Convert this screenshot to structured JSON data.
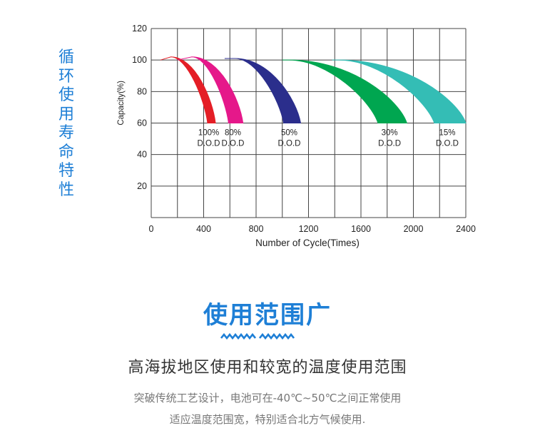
{
  "side_title": "循环使用寿命特性",
  "chart_data": {
    "type": "area",
    "xlabel": "Number of Cycle(Times)",
    "ylabel": "Capacity(%)",
    "xlim": [
      0,
      2400
    ],
    "ylim": [
      0,
      120
    ],
    "x_ticks": [
      "0",
      "400",
      "800",
      "1200",
      "1600",
      "2000",
      "2400"
    ],
    "y_ticks": [
      "20",
      "40",
      "60",
      "80",
      "100",
      "120"
    ],
    "grid": true,
    "series": [
      {
        "name": "100% D.O.D",
        "label_top": "100%",
        "label_bottom": "D.O.D",
        "color": "#e41e26",
        "start": [
          70,
          100
        ],
        "peak": [
          150,
          102
        ],
        "end_inner": [
          430,
          60
        ],
        "end_outer": [
          490,
          60
        ]
      },
      {
        "name": "80% D.O.D",
        "label_top": "80%",
        "label_bottom": "D.O.D",
        "color": "#e5188a",
        "start": [
          200,
          100
        ],
        "peak": [
          310,
          102
        ],
        "end_inner": [
          590,
          60
        ],
        "end_outer": [
          700,
          60
        ]
      },
      {
        "name": "50% D.O.D",
        "label_top": "50%",
        "label_bottom": "D.O.D",
        "color": "#2b2e8c",
        "start": [
          560,
          101
        ],
        "peak": [
          640,
          101
        ],
        "end_inner": [
          1010,
          60
        ],
        "end_outer": [
          1140,
          60
        ]
      },
      {
        "name": "30% D.O.D",
        "label_top": "30%",
        "label_bottom": "D.O.D",
        "color": "#00a650",
        "start": [
          1000,
          100
        ],
        "peak": [
          1050,
          100
        ],
        "end_inner": [
          1730,
          60
        ],
        "end_outer": [
          1950,
          60
        ]
      },
      {
        "name": "15% D.O.D",
        "label_top": "15%",
        "label_bottom": "D.O.D",
        "color": "#34bdb5",
        "start": [
          1380,
          100
        ],
        "peak": [
          1430,
          100
        ],
        "end_inner": [
          2160,
          60
        ],
        "end_outer": [
          2400,
          60
        ]
      }
    ]
  },
  "heading": "使用范围广",
  "subheading": "高海拔地区使用和较宽的温度使用范围",
  "description_line1": "突破传统工艺设计，电池可在-40℃~50℃之间正常使用",
  "description_line2": "适应温度范围宽，特别适合北方气候使用.",
  "accent_color": "#1e7fd6"
}
